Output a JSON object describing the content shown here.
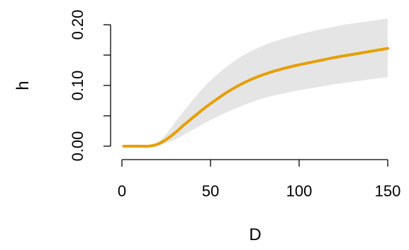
{
  "chart_data": {
    "type": "line",
    "title": "",
    "xlabel": "D",
    "ylabel": "h",
    "xlim": [
      0,
      150
    ],
    "ylim": [
      0,
      0.2
    ],
    "x_ticks": [
      0,
      50,
      100,
      150
    ],
    "x_tick_labels": [
      "0",
      "50",
      "100",
      "150"
    ],
    "y_ticks": [
      0,
      0.05,
      0.1,
      0.15,
      0.2
    ],
    "y_tick_labels": [
      "0.00",
      "",
      "0.10",
      "",
      "0.20"
    ],
    "grid": false,
    "legend": "none",
    "line_color": "#E69F00",
    "band_color": "#E5E5E5",
    "series": [
      {
        "x": [
          1,
          5,
          10,
          15,
          20,
          25,
          30,
          35,
          40,
          45,
          50,
          60,
          70,
          80,
          90,
          100,
          110,
          120,
          130,
          140,
          150
        ],
        "y": [
          0,
          0,
          0,
          0,
          0.003,
          0.011,
          0.022,
          0.035,
          0.047,
          0.059,
          0.07,
          0.09,
          0.106,
          0.118,
          0.127,
          0.134,
          0.14,
          0.146,
          0.151,
          0.156,
          0.161
        ],
        "lower": [
          0,
          0,
          0,
          0,
          0.001,
          0.005,
          0.011,
          0.019,
          0.027,
          0.035,
          0.043,
          0.057,
          0.069,
          0.079,
          0.086,
          0.092,
          0.097,
          0.102,
          0.106,
          0.11,
          0.114
        ],
        "upper": [
          0,
          0,
          0,
          0,
          0.006,
          0.02,
          0.039,
          0.058,
          0.076,
          0.093,
          0.108,
          0.133,
          0.152,
          0.166,
          0.176,
          0.184,
          0.191,
          0.197,
          0.202,
          0.206,
          0.21
        ]
      }
    ]
  }
}
